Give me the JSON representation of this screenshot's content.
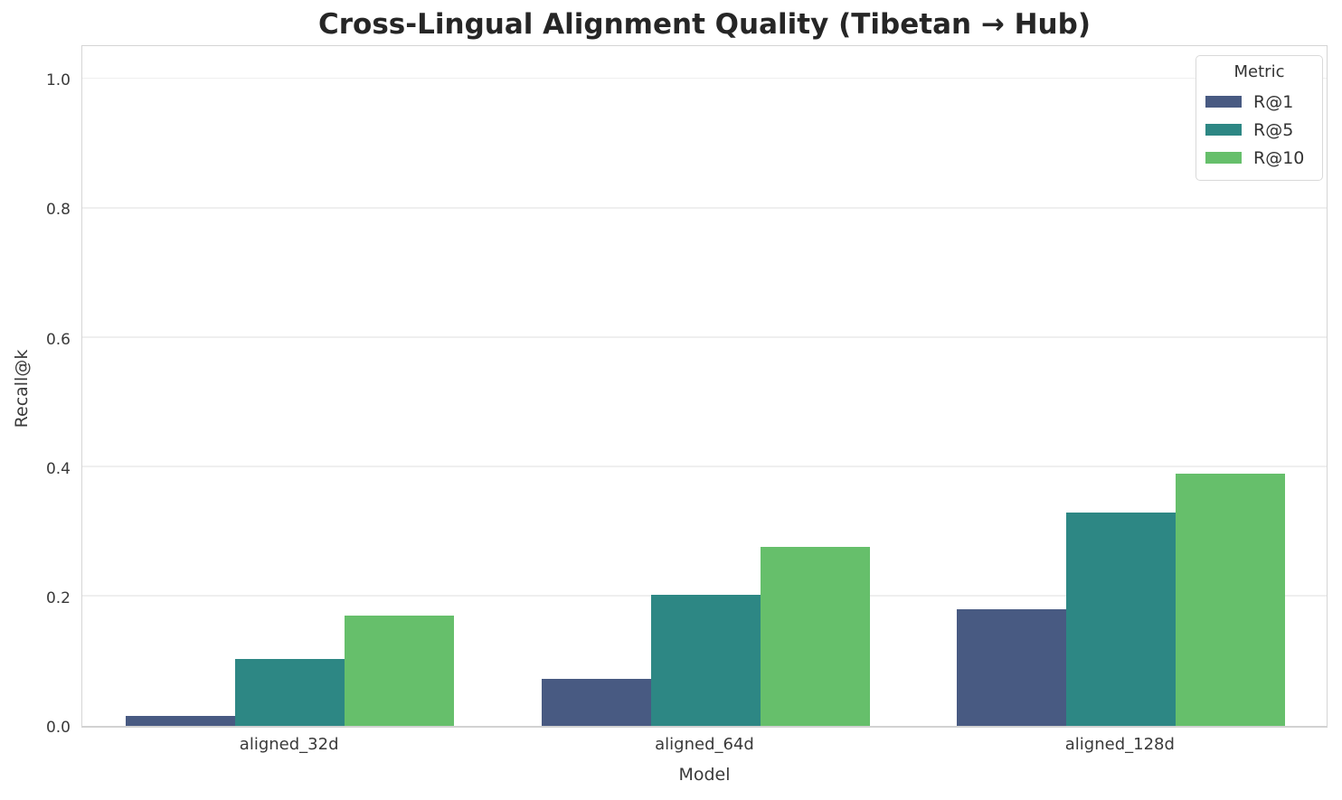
{
  "chart_data": {
    "type": "bar",
    "title": "Cross-Lingual Alignment Quality (Tibetan → Hub)",
    "xlabel": "Model",
    "ylabel": "Recall@k",
    "categories": [
      "aligned_32d",
      "aligned_64d",
      "aligned_128d"
    ],
    "series": [
      {
        "name": "R@1",
        "color": "#485a82",
        "values": [
          0.015,
          0.073,
          0.18
        ]
      },
      {
        "name": "R@5",
        "color": "#2d8784",
        "values": [
          0.103,
          0.202,
          0.33
        ]
      },
      {
        "name": "R@10",
        "color": "#66bf6b",
        "values": [
          0.17,
          0.276,
          0.39
        ]
      }
    ],
    "ylim": [
      0,
      1.055
    ],
    "yticks": [
      0.0,
      0.2,
      0.4,
      0.6,
      0.8,
      1.0
    ],
    "ytick_labels": [
      "0.0",
      "0.2",
      "0.4",
      "0.6",
      "0.8",
      "1.0"
    ],
    "grid": true,
    "legend": {
      "title": "Metric",
      "position": "upper right",
      "entries": [
        "R@1",
        "R@5",
        "R@10"
      ]
    },
    "colors": {
      "grid": "#efefef",
      "axis_border": "#d5d5d5",
      "title_text": "#262626",
      "tick_text": "#3a3a3a"
    }
  }
}
